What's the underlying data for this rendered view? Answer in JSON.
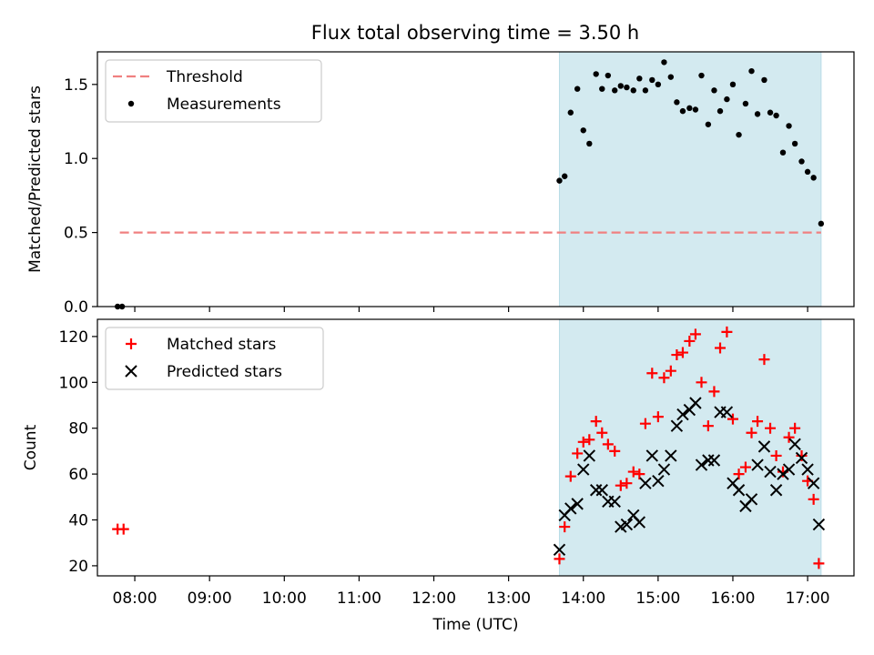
{
  "figure_title": "Flux total observing time = 3.50 h",
  "colors": {
    "shade": "#d3eaf0",
    "shade_edge": "#b8dbe6",
    "threshold": "#f08080",
    "matched": "#ff0000",
    "predicted": "#000000",
    "measure": "#000000"
  },
  "chart_data": [
    {
      "type": "scatter",
      "panel": "top",
      "title": "Flux total observing time = 3.50 h",
      "xlabel": "",
      "ylabel": "Matched/Predicted stars",
      "xlim": [
        7.5,
        17.62
      ],
      "ylim": [
        0,
        1.72
      ],
      "yticks": [
        0,
        0.5,
        1.0,
        1.5
      ],
      "ytick_labels": [
        "0.0",
        "0.5",
        "1.0",
        "1.5"
      ],
      "shaded_span": [
        13.68,
        17.18
      ],
      "legend": {
        "placement": "upper-left",
        "entries": [
          "Threshold",
          "Measurements"
        ]
      },
      "threshold": {
        "name": "Threshold",
        "y": 0.5,
        "x_range": [
          7.8,
          17.18
        ]
      },
      "series": [
        {
          "name": "Measurements",
          "x": [
            7.77,
            7.83,
            13.68,
            13.75,
            13.83,
            13.92,
            14.0,
            14.08,
            14.17,
            14.25,
            14.33,
            14.42,
            14.5,
            14.58,
            14.67,
            14.75,
            14.83,
            14.92,
            15.0,
            15.08,
            15.17,
            15.25,
            15.33,
            15.42,
            15.5,
            15.58,
            15.67,
            15.75,
            15.83,
            15.92,
            16.0,
            16.08,
            16.17,
            16.25,
            16.33,
            16.42,
            16.5,
            16.58,
            16.67,
            16.75,
            16.83,
            16.92,
            17.0,
            17.08,
            17.18
          ],
          "y": [
            0.0,
            0.0,
            0.85,
            0.88,
            1.31,
            1.47,
            1.19,
            1.1,
            1.57,
            1.47,
            1.56,
            1.46,
            1.49,
            1.48,
            1.46,
            1.54,
            1.46,
            1.53,
            1.5,
            1.65,
            1.55,
            1.38,
            1.32,
            1.34,
            1.33,
            1.56,
            1.23,
            1.46,
            1.32,
            1.4,
            1.5,
            1.16,
            1.37,
            1.59,
            1.3,
            1.53,
            1.31,
            1.29,
            1.04,
            1.22,
            1.1,
            0.98,
            0.91,
            0.87,
            0.56
          ]
        }
      ]
    },
    {
      "type": "scatter",
      "panel": "bottom",
      "title": "",
      "xlabel": "Time (UTC)",
      "ylabel": "Count",
      "xlim": [
        7.5,
        17.62
      ],
      "ylim": [
        15.6,
        127.5
      ],
      "yticks": [
        20,
        40,
        60,
        80,
        100,
        120
      ],
      "ytick_labels": [
        "20",
        "40",
        "60",
        "80",
        "100",
        "120"
      ],
      "xticks": [
        8,
        9,
        10,
        11,
        12,
        13,
        14,
        15,
        16,
        17
      ],
      "xtick_labels": [
        "08:00",
        "09:00",
        "10:00",
        "11:00",
        "12:00",
        "13:00",
        "14:00",
        "15:00",
        "16:00",
        "17:00"
      ],
      "shaded_span": [
        13.68,
        17.18
      ],
      "legend": {
        "placement": "upper-left",
        "entries": [
          "Matched stars",
          "Predicted stars"
        ]
      },
      "series": [
        {
          "name": "Matched stars",
          "marker": "plus",
          "x": [
            7.77,
            7.85,
            13.68,
            13.75,
            13.83,
            13.92,
            14.0,
            14.08,
            14.17,
            14.25,
            14.33,
            14.42,
            14.5,
            14.58,
            14.67,
            14.75,
            14.83,
            14.92,
            15.0,
            15.08,
            15.17,
            15.25,
            15.33,
            15.42,
            15.5,
            15.58,
            15.67,
            15.75,
            15.83,
            15.92,
            16.0,
            16.08,
            16.17,
            16.25,
            16.33,
            16.42,
            16.5,
            16.58,
            16.67,
            16.75,
            16.83,
            16.92,
            17.0,
            17.08,
            17.15
          ],
          "y": [
            36,
            36,
            23,
            37,
            59,
            69,
            74,
            75,
            83,
            78,
            73,
            70,
            55,
            56,
            61,
            60,
            82,
            104,
            85,
            102,
            105,
            112,
            113,
            118,
            121,
            100,
            81,
            96,
            115,
            122,
            84,
            60,
            63,
            78,
            83,
            110,
            80,
            68,
            61,
            76,
            80,
            68,
            57,
            49,
            21
          ]
        },
        {
          "name": "Predicted stars",
          "marker": "x",
          "x": [
            13.68,
            13.75,
            13.83,
            13.92,
            14.0,
            14.08,
            14.17,
            14.25,
            14.33,
            14.42,
            14.5,
            14.58,
            14.67,
            14.75,
            14.83,
            14.92,
            15.0,
            15.08,
            15.17,
            15.25,
            15.33,
            15.42,
            15.5,
            15.58,
            15.67,
            15.75,
            15.83,
            15.92,
            16.0,
            16.08,
            16.17,
            16.25,
            16.33,
            16.42,
            16.5,
            16.58,
            16.67,
            16.75,
            16.83,
            16.92,
            17.0,
            17.08,
            17.15
          ],
          "y": [
            27,
            42,
            45,
            47,
            62,
            68,
            53,
            53,
            48,
            48,
            37,
            38,
            42,
            39,
            56,
            68,
            57,
            62,
            68,
            81,
            86,
            88,
            91,
            64,
            66,
            66,
            87,
            87,
            56,
            53,
            46,
            49,
            64,
            72,
            61,
            53,
            60,
            62,
            73,
            67,
            62,
            56,
            38
          ]
        }
      ]
    }
  ]
}
